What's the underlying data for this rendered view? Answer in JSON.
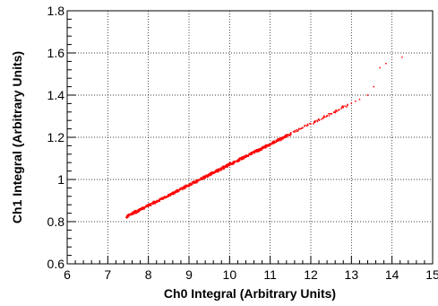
{
  "chart_data": {
    "type": "scatter",
    "xlabel": "Ch0 Integral (Arbitrary Units)",
    "ylabel": "Ch1 Integral (Arbitrary Units)",
    "xlim": [
      6,
      15
    ],
    "ylim": [
      0.6,
      1.8
    ],
    "x_ticks": [
      6,
      7,
      8,
      9,
      10,
      11,
      12,
      13,
      14,
      15
    ],
    "y_ticks": [
      0.6,
      0.8,
      1,
      1.2,
      1.4,
      1.6,
      1.8
    ],
    "x_tick_labels": [
      "6",
      "7",
      "8",
      "9",
      "10",
      "11",
      "12",
      "13",
      "14",
      "15"
    ],
    "y_tick_labels": [
      "0.6",
      "0.8",
      "1",
      "1.2",
      "1.4",
      "1.6",
      "1.8"
    ],
    "grid": true,
    "marker_color": "#ff0000",
    "series": [
      {
        "points": [
          [
            7.45,
            0.82
          ],
          [
            7.5,
            0.828
          ],
          [
            7.55,
            0.832
          ],
          [
            7.6,
            0.838
          ],
          [
            7.65,
            0.842
          ],
          [
            7.7,
            0.848
          ],
          [
            7.75,
            0.852
          ],
          [
            7.8,
            0.858
          ],
          [
            7.85,
            0.861
          ],
          [
            7.9,
            0.867
          ],
          [
            7.95,
            0.871
          ],
          [
            8.0,
            0.877
          ],
          [
            8.05,
            0.881
          ],
          [
            8.1,
            0.887
          ],
          [
            8.15,
            0.891
          ],
          [
            8.2,
            0.896
          ],
          [
            8.25,
            0.9
          ],
          [
            8.3,
            0.906
          ],
          [
            8.35,
            0.91
          ],
          [
            8.4,
            0.916
          ],
          [
            8.45,
            0.92
          ],
          [
            8.5,
            0.925
          ],
          [
            8.55,
            0.93
          ],
          [
            8.6,
            0.935
          ],
          [
            8.65,
            0.94
          ],
          [
            8.7,
            0.945
          ],
          [
            8.75,
            0.949
          ],
          [
            8.8,
            0.955
          ],
          [
            8.85,
            0.959
          ],
          [
            8.9,
            0.964
          ],
          [
            8.95,
            0.969
          ],
          [
            9.0,
            0.974
          ],
          [
            9.05,
            0.979
          ],
          [
            9.1,
            0.984
          ],
          [
            9.15,
            0.988
          ],
          [
            9.2,
            0.993
          ],
          [
            9.25,
            0.998
          ],
          [
            9.3,
            1.003
          ],
          [
            9.35,
            1.008
          ],
          [
            9.4,
            1.013
          ],
          [
            9.45,
            1.017
          ],
          [
            9.5,
            1.022
          ],
          [
            9.55,
            1.027
          ],
          [
            9.6,
            1.032
          ],
          [
            9.65,
            1.037
          ],
          [
            9.7,
            1.042
          ],
          [
            9.75,
            1.046
          ],
          [
            9.8,
            1.051
          ],
          [
            9.85,
            1.056
          ],
          [
            9.9,
            1.061
          ],
          [
            9.95,
            1.066
          ],
          [
            10.0,
            1.071
          ],
          [
            10.05,
            1.075
          ],
          [
            10.1,
            1.08
          ],
          [
            10.15,
            1.085
          ],
          [
            10.2,
            1.09
          ],
          [
            10.25,
            1.095
          ],
          [
            10.3,
            1.1
          ],
          [
            10.35,
            1.104
          ],
          [
            10.4,
            1.109
          ],
          [
            10.45,
            1.114
          ],
          [
            10.5,
            1.119
          ],
          [
            10.55,
            1.124
          ],
          [
            10.6,
            1.129
          ],
          [
            10.65,
            1.133
          ],
          [
            10.7,
            1.138
          ],
          [
            10.75,
            1.143
          ],
          [
            10.8,
            1.148
          ],
          [
            10.85,
            1.153
          ],
          [
            10.9,
            1.158
          ],
          [
            10.95,
            1.162
          ],
          [
            11.0,
            1.167
          ],
          [
            11.05,
            1.172
          ],
          [
            11.1,
            1.177
          ],
          [
            11.15,
            1.182
          ],
          [
            11.2,
            1.187
          ],
          [
            11.25,
            1.191
          ],
          [
            11.3,
            1.196
          ],
          [
            11.35,
            1.201
          ],
          [
            11.4,
            1.206
          ],
          [
            11.5,
            1.216
          ],
          [
            11.6,
            1.225
          ],
          [
            11.7,
            1.235
          ],
          [
            11.8,
            1.245
          ],
          [
            11.9,
            1.254
          ],
          [
            12.0,
            1.264
          ],
          [
            12.1,
            1.274
          ],
          [
            12.2,
            1.283
          ],
          [
            12.3,
            1.293
          ],
          [
            12.4,
            1.303
          ],
          [
            12.5,
            1.312
          ],
          [
            12.6,
            1.322
          ],
          [
            12.7,
            1.332
          ],
          [
            12.8,
            1.342
          ],
          [
            12.9,
            1.351
          ],
          [
            13.0,
            1.361
          ],
          [
            13.1,
            1.371
          ],
          [
            13.2,
            1.38
          ],
          [
            13.4,
            1.4
          ],
          [
            13.55,
            1.44
          ],
          [
            13.7,
            1.53
          ],
          [
            13.85,
            1.55
          ],
          [
            14.25,
            1.58
          ]
        ]
      }
    ]
  }
}
